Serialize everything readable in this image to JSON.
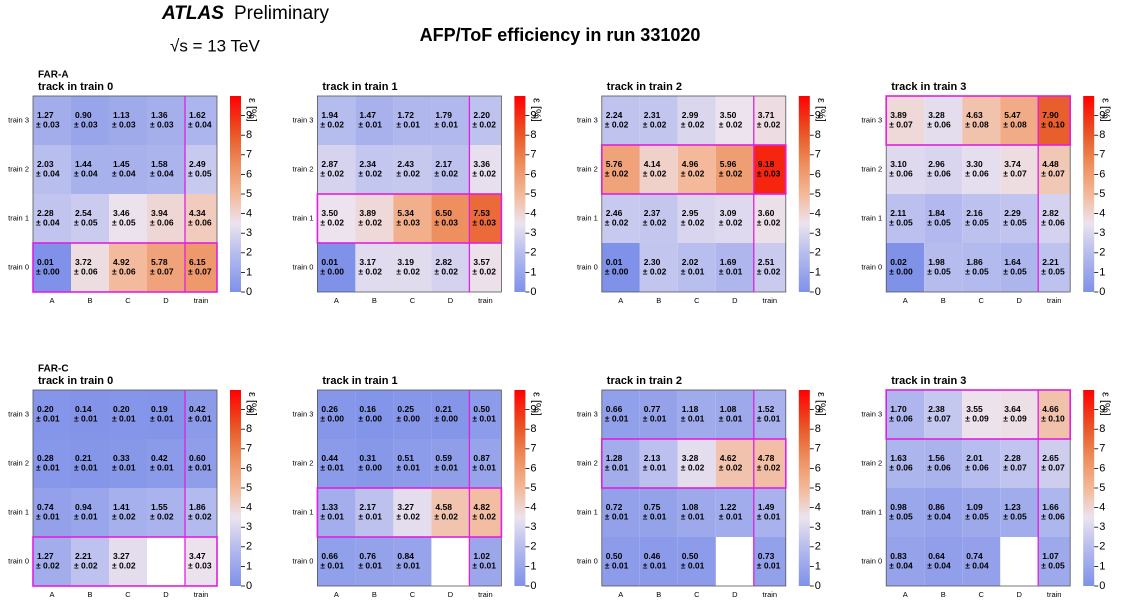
{
  "header": {
    "experiment": "ATLAS",
    "status": "Preliminary",
    "energy": "√s = 13 TeV",
    "title": "AFP/ToF efficiency in run 331020"
  },
  "chart_data": [
    {
      "type": "heatmap",
      "panel_label": "FAR-A",
      "title": "track in train 0",
      "x_categories": [
        "A",
        "B",
        "C",
        "D",
        "train"
      ],
      "y_categories": [
        "train 3",
        "train 2",
        "train 1",
        "train 0"
      ],
      "zlabel": "ε [%]",
      "zlim": [
        0,
        10
      ],
      "zticks": [
        0,
        1,
        2,
        3,
        4,
        5,
        6,
        7,
        8,
        9
      ],
      "highlight_row": 3,
      "values": [
        [
          1.27,
          0.9,
          1.13,
          1.36,
          1.62
        ],
        [
          2.03,
          1.44,
          1.45,
          1.58,
          2.49
        ],
        [
          2.28,
          2.54,
          3.46,
          3.94,
          4.34
        ],
        [
          0.01,
          3.72,
          4.92,
          5.78,
          6.15
        ]
      ],
      "value_labels": [
        [
          "1.27",
          "0.90",
          "1.13",
          "1.36",
          "1.62"
        ],
        [
          "2.03",
          "1.44",
          "1.45",
          "1.58",
          "2.49"
        ],
        [
          "2.28",
          "2.54",
          "3.46",
          "3.94",
          "4.34"
        ],
        [
          "0.01",
          "3.72",
          "4.92",
          "5.78",
          "6.15"
        ]
      ],
      "error_labels": [
        [
          "± 0.03",
          "± 0.03",
          "± 0.03",
          "± 0.03",
          "± 0.04"
        ],
        [
          "± 0.04",
          "± 0.04",
          "± 0.04",
          "± 0.04",
          "± 0.05"
        ],
        [
          "± 0.04",
          "± 0.05",
          "± 0.05",
          "± 0.06",
          "± 0.06"
        ],
        [
          "± 0.00",
          "± 0.06",
          "± 0.06",
          "± 0.07",
          "± 0.07"
        ]
      ]
    },
    {
      "type": "heatmap",
      "title": "track in train 1",
      "x_categories": [
        "A",
        "B",
        "C",
        "D",
        "train"
      ],
      "y_categories": [
        "train 3",
        "train 2",
        "train 1",
        "train 0"
      ],
      "zlabel": "ε [%]",
      "zlim": [
        0,
        10
      ],
      "zticks": [
        0,
        1,
        2,
        3,
        4,
        5,
        6,
        7,
        8,
        9
      ],
      "highlight_row": 2,
      "values": [
        [
          1.94,
          1.47,
          1.72,
          1.79,
          2.2
        ],
        [
          2.87,
          2.34,
          2.43,
          2.17,
          3.36
        ],
        [
          3.5,
          3.89,
          5.34,
          6.5,
          7.53
        ],
        [
          0.01,
          3.17,
          3.19,
          2.82,
          3.57
        ]
      ],
      "value_labels": [
        [
          "1.94",
          "1.47",
          "1.72",
          "1.79",
          "2.20"
        ],
        [
          "2.87",
          "2.34",
          "2.43",
          "2.17",
          "3.36"
        ],
        [
          "3.50",
          "3.89",
          "5.34",
          "6.50",
          "7.53"
        ],
        [
          "0.01",
          "3.17",
          "3.19",
          "2.82",
          "3.57"
        ]
      ],
      "error_labels": [
        [
          "± 0.02",
          "± 0.01",
          "± 0.01",
          "± 0.01",
          "± 0.02"
        ],
        [
          "± 0.02",
          "± 0.02",
          "± 0.02",
          "± 0.02",
          "± 0.02"
        ],
        [
          "± 0.02",
          "± 0.02",
          "± 0.03",
          "± 0.03",
          "± 0.03"
        ],
        [
          "± 0.00",
          "± 0.02",
          "± 0.02",
          "± 0.02",
          "± 0.02"
        ]
      ]
    },
    {
      "type": "heatmap",
      "title": "track in train 2",
      "x_categories": [
        "A",
        "B",
        "C",
        "D",
        "train"
      ],
      "y_categories": [
        "train 3",
        "train 2",
        "train 1",
        "train 0"
      ],
      "zlabel": "ε [%]",
      "zlim": [
        0,
        10
      ],
      "zticks": [
        0,
        1,
        2,
        3,
        4,
        5,
        6,
        7,
        8,
        9
      ],
      "highlight_row": 1,
      "values": [
        [
          2.24,
          2.31,
          2.99,
          3.5,
          3.71
        ],
        [
          5.76,
          4.14,
          4.96,
          5.96,
          9.18
        ],
        [
          2.46,
          2.37,
          2.95,
          3.09,
          3.6
        ],
        [
          0.01,
          2.3,
          2.02,
          1.69,
          2.51
        ]
      ],
      "value_labels": [
        [
          "2.24",
          "2.31",
          "2.99",
          "3.50",
          "3.71"
        ],
        [
          "5.76",
          "4.14",
          "4.96",
          "5.96",
          "9.18"
        ],
        [
          "2.46",
          "2.37",
          "2.95",
          "3.09",
          "3.60"
        ],
        [
          "0.01",
          "2.30",
          "2.02",
          "1.69",
          "2.51"
        ]
      ],
      "error_labels": [
        [
          "± 0.02",
          "± 0.02",
          "± 0.02",
          "± 0.02",
          "± 0.02"
        ],
        [
          "± 0.02",
          "± 0.02",
          "± 0.02",
          "± 0.02",
          "± 0.03"
        ],
        [
          "± 0.02",
          "± 0.02",
          "± 0.02",
          "± 0.02",
          "± 0.02"
        ],
        [
          "± 0.00",
          "± 0.02",
          "± 0.01",
          "± 0.01",
          "± 0.02"
        ]
      ]
    },
    {
      "type": "heatmap",
      "title": "track in train 3",
      "x_categories": [
        "A",
        "B",
        "C",
        "D",
        "train"
      ],
      "y_categories": [
        "train 3",
        "train 2",
        "train 1",
        "train 0"
      ],
      "zlabel": "ε [%]",
      "zlim": [
        0,
        10
      ],
      "zticks": [
        0,
        1,
        2,
        3,
        4,
        5,
        6,
        7,
        8,
        9
      ],
      "highlight_row": 0,
      "values": [
        [
          3.89,
          3.28,
          4.63,
          5.47,
          7.9
        ],
        [
          3.1,
          2.96,
          3.3,
          3.74,
          4.48
        ],
        [
          2.11,
          1.84,
          2.16,
          2.29,
          2.82
        ],
        [
          0.02,
          1.98,
          1.86,
          1.64,
          2.21
        ]
      ],
      "value_labels": [
        [
          "3.89",
          "3.28",
          "4.63",
          "5.47",
          "7.90"
        ],
        [
          "3.10",
          "2.96",
          "3.30",
          "3.74",
          "4.48"
        ],
        [
          "2.11",
          "1.84",
          "2.16",
          "2.29",
          "2.82"
        ],
        [
          "0.02",
          "1.98",
          "1.86",
          "1.64",
          "2.21"
        ]
      ],
      "error_labels": [
        [
          "± 0.07",
          "± 0.06",
          "± 0.08",
          "± 0.08",
          "± 0.10"
        ],
        [
          "± 0.06",
          "± 0.06",
          "± 0.06",
          "± 0.07",
          "± 0.07"
        ],
        [
          "± 0.05",
          "± 0.05",
          "± 0.05",
          "± 0.05",
          "± 0.06"
        ],
        [
          "± 0.00",
          "± 0.05",
          "± 0.05",
          "± 0.05",
          "± 0.05"
        ]
      ]
    },
    {
      "type": "heatmap",
      "panel_label": "FAR-C",
      "title": "track in train 0",
      "x_categories": [
        "A",
        "B",
        "C",
        "D",
        "train"
      ],
      "y_categories": [
        "train 3",
        "train 2",
        "train 1",
        "train 0"
      ],
      "zlabel": "ε [%]",
      "zlim": [
        0,
        10
      ],
      "zticks": [
        0,
        1,
        2,
        3,
        4,
        5,
        6,
        7,
        8,
        9
      ],
      "highlight_row": 3,
      "values": [
        [
          0.2,
          0.14,
          0.2,
          0.19,
          0.42
        ],
        [
          0.28,
          0.21,
          0.33,
          0.42,
          0.6
        ],
        [
          0.74,
          0.94,
          1.41,
          1.55,
          1.86
        ],
        [
          1.27,
          2.21,
          3.27,
          null,
          3.47
        ]
      ],
      "value_labels": [
        [
          "0.20",
          "0.14",
          "0.20",
          "0.19",
          "0.42"
        ],
        [
          "0.28",
          "0.21",
          "0.33",
          "0.42",
          "0.60"
        ],
        [
          "0.74",
          "0.94",
          "1.41",
          "1.55",
          "1.86"
        ],
        [
          "1.27",
          "2.21",
          "3.27",
          null,
          "3.47"
        ]
      ],
      "error_labels": [
        [
          "± 0.01",
          "± 0.01",
          "± 0.01",
          "± 0.01",
          "± 0.01"
        ],
        [
          "± 0.01",
          "± 0.01",
          "± 0.01",
          "± 0.01",
          "± 0.01"
        ],
        [
          "± 0.01",
          "± 0.01",
          "± 0.02",
          "± 0.02",
          "± 0.02"
        ],
        [
          "± 0.02",
          "± 0.02",
          "± 0.02",
          null,
          "± 0.03"
        ]
      ]
    },
    {
      "type": "heatmap",
      "title": "track in train 1",
      "x_categories": [
        "A",
        "B",
        "C",
        "D",
        "train"
      ],
      "y_categories": [
        "train 3",
        "train 2",
        "train 1",
        "train 0"
      ],
      "zlabel": "ε [%]",
      "zlim": [
        0,
        10
      ],
      "zticks": [
        0,
        1,
        2,
        3,
        4,
        5,
        6,
        7,
        8,
        9
      ],
      "highlight_row": 2,
      "values": [
        [
          0.26,
          0.16,
          0.25,
          0.21,
          0.5
        ],
        [
          0.44,
          0.31,
          0.51,
          0.59,
          0.87
        ],
        [
          1.33,
          2.17,
          3.27,
          4.58,
          4.82
        ],
        [
          0.66,
          0.76,
          0.84,
          null,
          1.02
        ]
      ],
      "value_labels": [
        [
          "0.26",
          "0.16",
          "0.25",
          "0.21",
          "0.50"
        ],
        [
          "0.44",
          "0.31",
          "0.51",
          "0.59",
          "0.87"
        ],
        [
          "1.33",
          "2.17",
          "3.27",
          "4.58",
          "4.82"
        ],
        [
          "0.66",
          "0.76",
          "0.84",
          null,
          "1.02"
        ]
      ],
      "error_labels": [
        [
          "± 0.00",
          "± 0.00",
          "± 0.00",
          "± 0.00",
          "± 0.01"
        ],
        [
          "± 0.01",
          "± 0.00",
          "± 0.01",
          "± 0.01",
          "± 0.01"
        ],
        [
          "± 0.01",
          "± 0.01",
          "± 0.02",
          "± 0.02",
          "± 0.02"
        ],
        [
          "± 0.01",
          "± 0.01",
          "± 0.01",
          null,
          "± 0.01"
        ]
      ]
    },
    {
      "type": "heatmap",
      "title": "track in train 2",
      "x_categories": [
        "A",
        "B",
        "C",
        "D",
        "train"
      ],
      "y_categories": [
        "train 3",
        "train 2",
        "train 1",
        "train 0"
      ],
      "zlabel": "ε [%]",
      "zlim": [
        0,
        10
      ],
      "zticks": [
        0,
        1,
        2,
        3,
        4,
        5,
        6,
        7,
        8,
        9
      ],
      "highlight_row": 1,
      "values": [
        [
          0.66,
          0.77,
          1.18,
          1.08,
          1.52
        ],
        [
          1.28,
          2.13,
          3.28,
          4.62,
          4.78
        ],
        [
          0.72,
          0.75,
          1.08,
          1.22,
          1.49
        ],
        [
          0.5,
          0.46,
          0.5,
          null,
          0.73
        ]
      ],
      "value_labels": [
        [
          "0.66",
          "0.77",
          "1.18",
          "1.08",
          "1.52"
        ],
        [
          "1.28",
          "2.13",
          "3.28",
          "4.62",
          "4.78"
        ],
        [
          "0.72",
          "0.75",
          "1.08",
          "1.22",
          "1.49"
        ],
        [
          "0.50",
          "0.46",
          "0.50",
          null,
          "0.73"
        ]
      ],
      "error_labels": [
        [
          "± 0.01",
          "± 0.01",
          "± 0.01",
          "± 0.01",
          "± 0.01"
        ],
        [
          "± 0.01",
          "± 0.01",
          "± 0.02",
          "± 0.02",
          "± 0.02"
        ],
        [
          "± 0.01",
          "± 0.01",
          "± 0.01",
          "± 0.01",
          "± 0.01"
        ],
        [
          "± 0.01",
          "± 0.01",
          "± 0.01",
          null,
          "± 0.01"
        ]
      ]
    },
    {
      "type": "heatmap",
      "title": "track in train 3",
      "x_categories": [
        "A",
        "B",
        "C",
        "D",
        "train"
      ],
      "y_categories": [
        "train 3",
        "train 2",
        "train 1",
        "train 0"
      ],
      "zlabel": "ε [%]",
      "zlim": [
        0,
        10
      ],
      "zticks": [
        0,
        1,
        2,
        3,
        4,
        5,
        6,
        7,
        8,
        9
      ],
      "highlight_row": 0,
      "values": [
        [
          1.7,
          2.38,
          3.55,
          3.64,
          4.66
        ],
        [
          1.63,
          1.56,
          2.01,
          2.28,
          2.65
        ],
        [
          0.98,
          0.86,
          1.09,
          1.23,
          1.66
        ],
        [
          0.83,
          0.64,
          0.74,
          null,
          1.07
        ]
      ],
      "value_labels": [
        [
          "1.70",
          "2.38",
          "3.55",
          "3.64",
          "4.66"
        ],
        [
          "1.63",
          "1.56",
          "2.01",
          "2.28",
          "2.65"
        ],
        [
          "0.98",
          "0.86",
          "1.09",
          "1.23",
          "1.66"
        ],
        [
          "0.83",
          "0.64",
          "0.74",
          null,
          "1.07"
        ]
      ],
      "error_labels": [
        [
          "± 0.06",
          "± 0.07",
          "± 0.09",
          "± 0.09",
          "± 0.10"
        ],
        [
          "± 0.06",
          "± 0.06",
          "± 0.06",
          "± 0.07",
          "± 0.07"
        ],
        [
          "± 0.05",
          "± 0.04",
          "± 0.05",
          "± 0.05",
          "± 0.06"
        ],
        [
          "± 0.04",
          "± 0.04",
          "± 0.04",
          null,
          "± 0.05"
        ]
      ]
    }
  ]
}
